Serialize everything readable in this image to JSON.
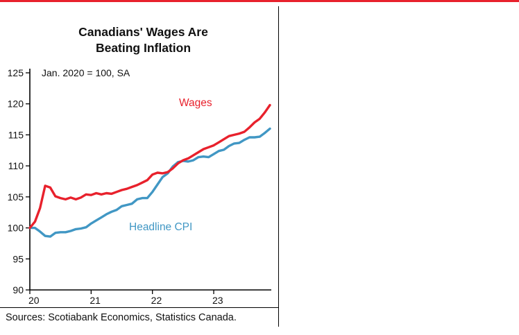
{
  "page": {
    "accent_red": "#e8212c",
    "cpi_blue": "#4197c4",
    "axis_color": "#000000"
  },
  "chart": {
    "title_line1": "Canadians' Wages Are",
    "title_line2": "Beating Inflation",
    "subtitle": "Jan. 2020 = 100, SA",
    "sources": "Sources: Scotiabank Economics, Statistics Canada."
  },
  "chart_data": {
    "type": "line",
    "title": "Canadians' Wages Are Beating Inflation",
    "subtitle": "Jan. 2020 = 100, SA",
    "xlabel": "",
    "ylabel": "",
    "x_unit": "monthly, Jan 2020 - Dec 2023 (index, Jan. 2020 = 100, SA)",
    "ylim": [
      90,
      125
    ],
    "y_ticks": [
      90,
      95,
      100,
      105,
      110,
      115,
      120,
      125
    ],
    "x_ticks": [
      {
        "label": "20",
        "index": 0
      },
      {
        "label": "21",
        "index": 12
      },
      {
        "label": "22",
        "index": 24
      },
      {
        "label": "23",
        "index": 36
      }
    ],
    "grid": false,
    "legend": "inline-labels",
    "series": [
      {
        "name": "Headline CPI",
        "color": "#4197c4",
        "values": [
          100.0,
          100.0,
          99.4,
          98.7,
          98.6,
          99.2,
          99.3,
          99.3,
          99.5,
          99.8,
          99.9,
          100.1,
          100.7,
          101.2,
          101.7,
          102.2,
          102.6,
          102.9,
          103.5,
          103.7,
          103.9,
          104.6,
          104.8,
          104.8,
          105.8,
          107.0,
          108.2,
          108.8,
          109.9,
          110.6,
          110.8,
          110.7,
          110.9,
          111.4,
          111.5,
          111.4,
          111.9,
          112.4,
          112.6,
          113.2,
          113.6,
          113.7,
          114.2,
          114.6,
          114.6,
          114.7,
          115.3,
          116.0
        ]
      },
      {
        "name": "Wages",
        "color": "#e8212c",
        "values": [
          100.0,
          101.0,
          103.2,
          106.8,
          106.5,
          105.1,
          104.8,
          104.6,
          104.9,
          104.6,
          104.9,
          105.4,
          105.3,
          105.6,
          105.4,
          105.6,
          105.5,
          105.8,
          106.1,
          106.3,
          106.6,
          106.9,
          107.3,
          107.7,
          108.6,
          108.9,
          108.8,
          109.0,
          109.6,
          110.4,
          110.9,
          111.2,
          111.7,
          112.2,
          112.7,
          113.0,
          113.3,
          113.8,
          114.3,
          114.8,
          115.0,
          115.2,
          115.5,
          116.2,
          117.0,
          117.6,
          118.6,
          119.8
        ]
      }
    ]
  }
}
